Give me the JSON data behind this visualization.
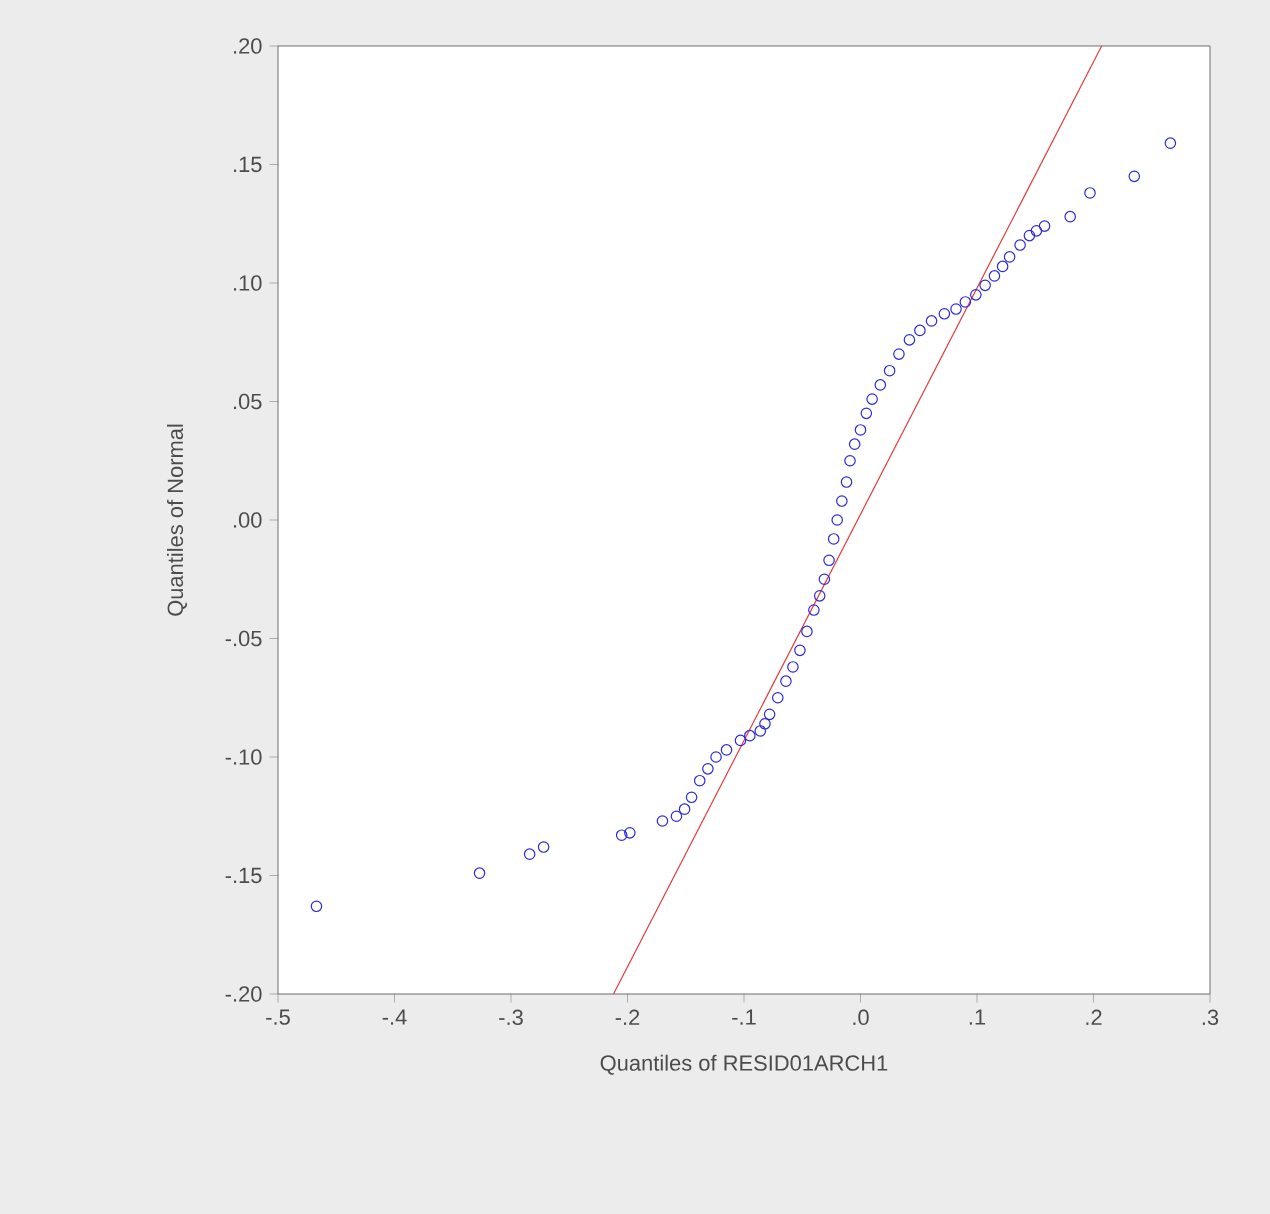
{
  "chart_data": {
    "type": "scatter",
    "xlabel": "Quantiles of RESID01ARCH1",
    "ylabel": "Quantiles of Normal",
    "xlim": [
      -0.5,
      0.3
    ],
    "ylim": [
      -0.2,
      0.2
    ],
    "xticks": [
      {
        "value": -0.5,
        "label": "-.5"
      },
      {
        "value": -0.4,
        "label": "-.4"
      },
      {
        "value": -0.3,
        "label": "-.3"
      },
      {
        "value": -0.2,
        "label": "-.2"
      },
      {
        "value": -0.1,
        "label": "-.1"
      },
      {
        "value": 0,
        "label": ".0"
      },
      {
        "value": 0.1,
        "label": ".1"
      },
      {
        "value": 0.2,
        "label": ".2"
      },
      {
        "value": 0.3,
        "label": ".3"
      }
    ],
    "yticks": [
      {
        "value": -0.2,
        "label": "-.20"
      },
      {
        "value": -0.15,
        "label": "-.15"
      },
      {
        "value": -0.1,
        "label": "-.10"
      },
      {
        "value": -0.05,
        "label": "-.05"
      },
      {
        "value": 0,
        "label": ".00"
      },
      {
        "value": 0.05,
        "label": ".05"
      },
      {
        "value": 0.1,
        "label": ".10"
      },
      {
        "value": 0.15,
        "label": ".15"
      },
      {
        "value": 0.2,
        "label": ".20"
      }
    ],
    "grid": false,
    "legend": false,
    "series": [
      {
        "marker": "circle",
        "color": "#2b2bd9",
        "x": [
          -0.467,
          -0.327,
          -0.284,
          -0.272,
          -0.205,
          -0.198,
          -0.17,
          -0.158,
          -0.151,
          -0.145,
          -0.138,
          -0.131,
          -0.124,
          -0.115,
          -0.103,
          -0.095,
          -0.086,
          -0.082,
          -0.078,
          -0.071,
          -0.064,
          -0.058,
          -0.052,
          -0.046,
          -0.04,
          -0.035,
          -0.031,
          -0.027,
          -0.023,
          -0.02,
          -0.016,
          -0.012,
          -0.009,
          -0.005,
          0.0,
          0.005,
          0.01,
          0.017,
          0.025,
          0.033,
          0.042,
          0.051,
          0.061,
          0.072,
          0.082,
          0.09,
          0.099,
          0.107,
          0.115,
          0.122,
          0.128,
          0.137,
          0.145,
          0.151,
          0.158,
          0.18,
          0.197,
          0.235,
          0.266
        ],
        "values": [
          -0.163,
          -0.149,
          -0.141,
          -0.138,
          -0.133,
          -0.132,
          -0.127,
          -0.125,
          -0.122,
          -0.117,
          -0.11,
          -0.105,
          -0.1,
          -0.097,
          -0.093,
          -0.091,
          -0.089,
          -0.086,
          -0.082,
          -0.075,
          -0.068,
          -0.062,
          -0.055,
          -0.047,
          -0.038,
          -0.032,
          -0.025,
          -0.017,
          -0.008,
          0.0,
          0.008,
          0.016,
          0.025,
          0.032,
          0.038,
          0.045,
          0.051,
          0.057,
          0.063,
          0.07,
          0.076,
          0.08,
          0.084,
          0.087,
          0.089,
          0.092,
          0.095,
          0.099,
          0.103,
          0.107,
          0.111,
          0.116,
          0.12,
          0.122,
          0.124,
          0.128,
          0.138,
          0.145,
          0.159
        ]
      },
      {
        "type": "line",
        "marker": "none",
        "line_style": "solid",
        "color": "#e03c3c",
        "x": [
          -0.212,
          0.207
        ],
        "values": [
          -0.2,
          0.2
        ]
      }
    ]
  }
}
